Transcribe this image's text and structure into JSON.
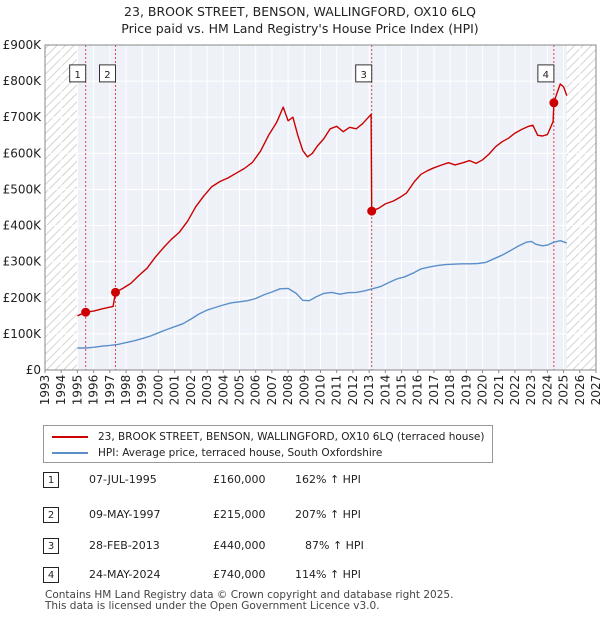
{
  "chart_data": {
    "type": "line",
    "title_line1": "23, BROOK STREET, BENSON, WALLINGFORD, OX10 6LQ",
    "title_line2": "Price paid vs. HM Land Registry's House Price Index (HPI)",
    "xlabel": "",
    "ylabel": "",
    "xlim": [
      1993,
      2027
    ],
    "ylim": [
      0,
      900000
    ],
    "y_ticks": [
      {
        "value": 0,
        "label": "£0"
      },
      {
        "value": 100000,
        "label": "£100K"
      },
      {
        "value": 200000,
        "label": "£200K"
      },
      {
        "value": 300000,
        "label": "£300K"
      },
      {
        "value": 400000,
        "label": "£400K"
      },
      {
        "value": 500000,
        "label": "£500K"
      },
      {
        "value": 600000,
        "label": "£600K"
      },
      {
        "value": 700000,
        "label": "£700K"
      },
      {
        "value": 800000,
        "label": "£800K"
      },
      {
        "value": 900000,
        "label": "£900K"
      }
    ],
    "x_ticks": [
      "1993",
      "1994",
      "1995",
      "1996",
      "1997",
      "1998",
      "1999",
      "2000",
      "2001",
      "2002",
      "2003",
      "2004",
      "2005",
      "2006",
      "2007",
      "2008",
      "2009",
      "2010",
      "2011",
      "2012",
      "2013",
      "2014",
      "2015",
      "2016",
      "2017",
      "2018",
      "2019",
      "2020",
      "2021",
      "2022",
      "2023",
      "2024",
      "2025",
      "2026",
      "2027"
    ],
    "hatch_regions": [
      [
        1993,
        1995.0
      ],
      [
        2025.2,
        2027
      ]
    ],
    "series": [
      {
        "name": "23, BROOK STREET, BENSON, WALLINGFORD, OX10 6LQ (terraced house)",
        "color": "#cc0000",
        "points": [
          [
            1995.0,
            150000
          ],
          [
            1995.51,
            160000
          ],
          [
            1996.0,
            163000
          ],
          [
            1996.6,
            170000
          ],
          [
            1997.2,
            176000
          ],
          [
            1997.35,
            215000
          ],
          [
            1997.8,
            226000
          ],
          [
            1998.3,
            240000
          ],
          [
            1998.8,
            262000
          ],
          [
            1999.3,
            282000
          ],
          [
            1999.8,
            312000
          ],
          [
            2000.3,
            338000
          ],
          [
            2000.8,
            362000
          ],
          [
            2001.3,
            382000
          ],
          [
            2001.8,
            412000
          ],
          [
            2002.3,
            452000
          ],
          [
            2002.8,
            482000
          ],
          [
            2003.3,
            508000
          ],
          [
            2003.8,
            522000
          ],
          [
            2004.3,
            532000
          ],
          [
            2004.8,
            545000
          ],
          [
            2005.3,
            558000
          ],
          [
            2005.8,
            575000
          ],
          [
            2006.3,
            606000
          ],
          [
            2006.8,
            650000
          ],
          [
            2007.3,
            686000
          ],
          [
            2007.7,
            728000
          ],
          [
            2008.0,
            690000
          ],
          [
            2008.3,
            700000
          ],
          [
            2008.6,
            650000
          ],
          [
            2008.9,
            608000
          ],
          [
            2009.2,
            590000
          ],
          [
            2009.5,
            600000
          ],
          [
            2009.8,
            620000
          ],
          [
            2010.2,
            640000
          ],
          [
            2010.6,
            668000
          ],
          [
            2011.0,
            675000
          ],
          [
            2011.4,
            660000
          ],
          [
            2011.8,
            672000
          ],
          [
            2012.2,
            668000
          ],
          [
            2012.6,
            682000
          ],
          [
            2013.12,
            708000
          ],
          [
            2013.16,
            440000
          ],
          [
            2013.6,
            448000
          ],
          [
            2014.0,
            460000
          ],
          [
            2014.5,
            468000
          ],
          [
            2014.9,
            478000
          ],
          [
            2015.3,
            490000
          ],
          [
            2015.8,
            522000
          ],
          [
            2016.2,
            542000
          ],
          [
            2016.6,
            552000
          ],
          [
            2017.0,
            560000
          ],
          [
            2017.5,
            568000
          ],
          [
            2017.9,
            574000
          ],
          [
            2018.3,
            568000
          ],
          [
            2018.8,
            574000
          ],
          [
            2019.2,
            580000
          ],
          [
            2019.6,
            572000
          ],
          [
            2020.0,
            582000
          ],
          [
            2020.4,
            598000
          ],
          [
            2020.8,
            618000
          ],
          [
            2021.2,
            632000
          ],
          [
            2021.6,
            642000
          ],
          [
            2022.0,
            656000
          ],
          [
            2022.4,
            666000
          ],
          [
            2022.8,
            674000
          ],
          [
            2023.1,
            678000
          ],
          [
            2023.4,
            650000
          ],
          [
            2023.7,
            648000
          ],
          [
            2024.0,
            652000
          ],
          [
            2024.35,
            688000
          ],
          [
            2024.4,
            740000
          ],
          [
            2024.6,
            768000
          ],
          [
            2024.8,
            792000
          ],
          [
            2025.0,
            784000
          ],
          [
            2025.2,
            760000
          ]
        ]
      },
      {
        "name": "HPI: Average price, terraced house, South Oxfordshire",
        "color": "#5b8fc9",
        "points": [
          [
            1995.0,
            61000
          ],
          [
            1995.5,
            61000
          ],
          [
            1996.0,
            63000
          ],
          [
            1996.5,
            66000
          ],
          [
            1997.0,
            68000
          ],
          [
            1997.5,
            71000
          ],
          [
            1998.0,
            76000
          ],
          [
            1998.5,
            81000
          ],
          [
            1999.0,
            87000
          ],
          [
            1999.5,
            94000
          ],
          [
            2000.0,
            103000
          ],
          [
            2000.5,
            112000
          ],
          [
            2001.0,
            120000
          ],
          [
            2001.5,
            128000
          ],
          [
            2002.0,
            141000
          ],
          [
            2002.5,
            155000
          ],
          [
            2003.0,
            166000
          ],
          [
            2003.5,
            173000
          ],
          [
            2004.0,
            180000
          ],
          [
            2004.5,
            186000
          ],
          [
            2005.0,
            189000
          ],
          [
            2005.5,
            192000
          ],
          [
            2006.0,
            198000
          ],
          [
            2006.5,
            208000
          ],
          [
            2007.0,
            216000
          ],
          [
            2007.5,
            225000
          ],
          [
            2008.0,
            226000
          ],
          [
            2008.5,
            212000
          ],
          [
            2008.9,
            193000
          ],
          [
            2009.3,
            192000
          ],
          [
            2009.7,
            202000
          ],
          [
            2010.2,
            212000
          ],
          [
            2010.7,
            215000
          ],
          [
            2011.2,
            210000
          ],
          [
            2011.7,
            214000
          ],
          [
            2012.2,
            215000
          ],
          [
            2012.7,
            219000
          ],
          [
            2013.2,
            225000
          ],
          [
            2013.7,
            231000
          ],
          [
            2014.2,
            242000
          ],
          [
            2014.7,
            252000
          ],
          [
            2015.2,
            258000
          ],
          [
            2015.7,
            268000
          ],
          [
            2016.2,
            280000
          ],
          [
            2016.7,
            285000
          ],
          [
            2017.2,
            289000
          ],
          [
            2017.7,
            292000
          ],
          [
            2018.2,
            293000
          ],
          [
            2018.7,
            294000
          ],
          [
            2019.2,
            294000
          ],
          [
            2019.7,
            295000
          ],
          [
            2020.2,
            298000
          ],
          [
            2020.7,
            308000
          ],
          [
            2021.2,
            318000
          ],
          [
            2021.7,
            330000
          ],
          [
            2022.2,
            343000
          ],
          [
            2022.7,
            354000
          ],
          [
            2023.0,
            356000
          ],
          [
            2023.3,
            348000
          ],
          [
            2023.7,
            344000
          ],
          [
            2024.0,
            346000
          ],
          [
            2024.4,
            354000
          ],
          [
            2024.8,
            358000
          ],
          [
            2025.2,
            352000
          ]
        ]
      }
    ],
    "sales": [
      {
        "id": "1",
        "x": 1995.51,
        "price": 160000
      },
      {
        "id": "2",
        "x": 1997.35,
        "price": 215000
      },
      {
        "id": "3",
        "x": 2013.16,
        "price": 440000
      },
      {
        "id": "4",
        "x": 2024.4,
        "price": 740000
      }
    ],
    "badge_label_y": 820000
  },
  "legend": {
    "red_label": "23, BROOK STREET, BENSON, WALLINGFORD, OX10 6LQ (terraced house)",
    "blue_label": "HPI: Average price, terraced house, South Oxfordshire"
  },
  "transactions": [
    {
      "id": "1",
      "date": "07-JUL-1995",
      "price": "£160,000",
      "hpi": "162% ↑ HPI"
    },
    {
      "id": "2",
      "date": "09-MAY-1997",
      "price": "£215,000",
      "hpi": "207% ↑ HPI"
    },
    {
      "id": "3",
      "date": "28-FEB-2013",
      "price": "£440,000",
      "hpi": "87% ↑ HPI"
    },
    {
      "id": "4",
      "date": "24-MAY-2024",
      "price": "£740,000",
      "hpi": "114% ↑ HPI"
    }
  ],
  "footer": {
    "line1": "Contains HM Land Registry data © Crown copyright and database right 2025.",
    "line2": "This data is licensed under the Open Government Licence v3.0."
  }
}
